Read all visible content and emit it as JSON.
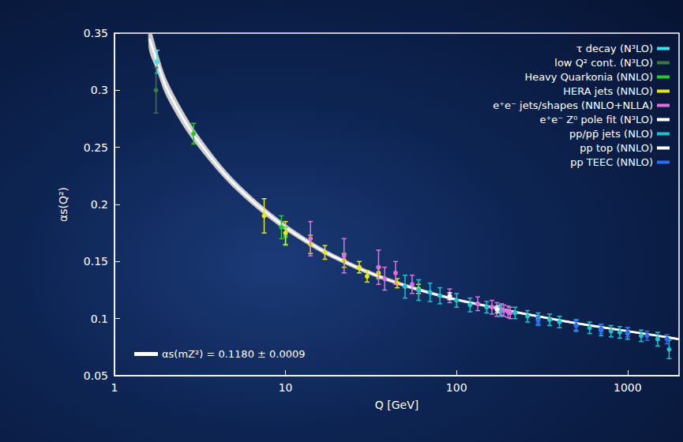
{
  "chart_data": {
    "type": "scatter",
    "x_label": "Q [GeV]",
    "y_label": "αs(Q²)",
    "log": "x",
    "xlim": [
      1,
      2000
    ],
    "xticks": [
      1,
      10,
      100,
      1000
    ],
    "ylim": [
      0.05,
      0.35
    ],
    "yticks": [
      0.05,
      0.1,
      0.15,
      0.2,
      0.25,
      0.3,
      0.35
    ],
    "grid": false,
    "legend": "top-right",
    "band": {
      "name": "αs(mZ²) = 0.1180 ± 0.0009",
      "color": "#ffffff",
      "x": [
        1.6,
        1.777,
        2,
        2.5,
        3,
        4,
        5,
        7,
        10,
        15,
        20,
        30,
        50,
        91.19,
        150,
        200,
        300,
        500,
        1000,
        1500,
        2000
      ],
      "values": [
        0.345,
        0.325,
        0.303,
        0.276,
        0.258,
        0.234,
        0.218,
        0.198,
        0.18,
        0.163,
        0.153,
        0.141,
        0.129,
        0.118,
        0.111,
        0.107,
        0.102,
        0.096,
        0.089,
        0.085,
        0.082
      ],
      "lower": [
        0.335,
        0.317,
        0.296,
        0.27,
        0.253,
        0.23,
        0.2145,
        0.195,
        0.1775,
        0.161,
        0.1512,
        0.1395,
        0.1278,
        0.1171,
        0.1102,
        0.1062,
        0.1013,
        0.0953,
        0.0884,
        0.0844,
        0.0814
      ],
      "upper": [
        0.355,
        0.333,
        0.31,
        0.282,
        0.263,
        0.238,
        0.2215,
        0.201,
        0.1825,
        0.165,
        0.1548,
        0.1425,
        0.1302,
        0.1189,
        0.1118,
        0.1078,
        0.1027,
        0.0967,
        0.0896,
        0.0856,
        0.0826
      ]
    },
    "series": [
      {
        "name": "τ decay (N³LO)",
        "color": "#40e0f0",
        "x": [
          1.777
        ],
        "values": [
          0.325
        ],
        "errors": [
          0.01
        ]
      },
      {
        "name": "low Q² cont. (N³LO)",
        "color": "#3c7a3c",
        "x": [
          1.75
        ],
        "values": [
          0.3
        ],
        "errors": [
          0.02
        ]
      },
      {
        "name": "Heavy Quarkonia (NNLO)",
        "color": "#22cc22",
        "x": [
          2.9,
          9.46,
          10.0
        ],
        "values": [
          0.262,
          0.18,
          0.172
        ],
        "errors": [
          0.009,
          0.01,
          0.008
        ]
      },
      {
        "name": "HERA jets (NNLO)",
        "color": "#e8e800",
        "x": [
          7.5,
          10,
          14,
          17,
          22,
          27,
          30,
          35,
          45,
          60
        ],
        "values": [
          0.19,
          0.175,
          0.165,
          0.158,
          0.151,
          0.145,
          0.137,
          0.14,
          0.131,
          0.126
        ],
        "errors": [
          0.015,
          0.01,
          0.008,
          0.006,
          0.006,
          0.005,
          0.005,
          0.005,
          0.004,
          0.004
        ]
      },
      {
        "name": "e⁺e⁻ jets/shapes (NNLO+NLLA)",
        "color": "#e070e0",
        "x": [
          14,
          22,
          35,
          38,
          44,
          55,
          91.2,
          133,
          161,
          172,
          183,
          189,
          200,
          206
        ],
        "values": [
          0.17,
          0.155,
          0.145,
          0.135,
          0.14,
          0.13,
          0.12,
          0.113,
          0.11,
          0.108,
          0.108,
          0.107,
          0.106,
          0.105
        ],
        "errors": [
          0.015,
          0.015,
          0.015,
          0.01,
          0.01,
          0.008,
          0.006,
          0.006,
          0.006,
          0.006,
          0.005,
          0.005,
          0.005,
          0.005
        ]
      },
      {
        "name": "e⁺e⁻ Z⁰ pole fit (N³LO)",
        "color": "#ffffff",
        "x": [
          91.19
        ],
        "values": [
          0.1196
        ],
        "errors": [
          0.003
        ]
      },
      {
        "name": "pp/pp̄ jets (NLO)",
        "color": "#19c3cf",
        "x": [
          50,
          60,
          70,
          80,
          100,
          120,
          150,
          180,
          220,
          260,
          300,
          350,
          400,
          500,
          600,
          700,
          800,
          900,
          1000,
          1200,
          1500,
          1750
        ],
        "values": [
          0.128,
          0.125,
          0.123,
          0.12,
          0.116,
          0.112,
          0.11,
          0.107,
          0.105,
          0.102,
          0.1,
          0.099,
          0.097,
          0.094,
          0.092,
          0.09,
          0.089,
          0.088,
          0.087,
          0.085,
          0.082,
          0.073
        ],
        "errors": [
          0.01,
          0.009,
          0.008,
          0.007,
          0.006,
          0.006,
          0.005,
          0.005,
          0.005,
          0.005,
          0.005,
          0.005,
          0.005,
          0.005,
          0.005,
          0.005,
          0.005,
          0.005,
          0.005,
          0.005,
          0.006,
          0.008
        ]
      },
      {
        "name": "pp top (NNLO)",
        "color": "#ffffff",
        "x": [
          173
        ],
        "values": [
          0.108
        ],
        "errors": [
          0.003
        ]
      },
      {
        "name": "pp TEEC (NNLO)",
        "color": "#2a6cff",
        "x": [
          300,
          500,
          700,
          1000,
          1300,
          1700
        ],
        "values": [
          0.098,
          0.094,
          0.091,
          0.088,
          0.085,
          0.082
        ],
        "errors": [
          0.004,
          0.004,
          0.004,
          0.004,
          0.004,
          0.004
        ]
      }
    ]
  }
}
